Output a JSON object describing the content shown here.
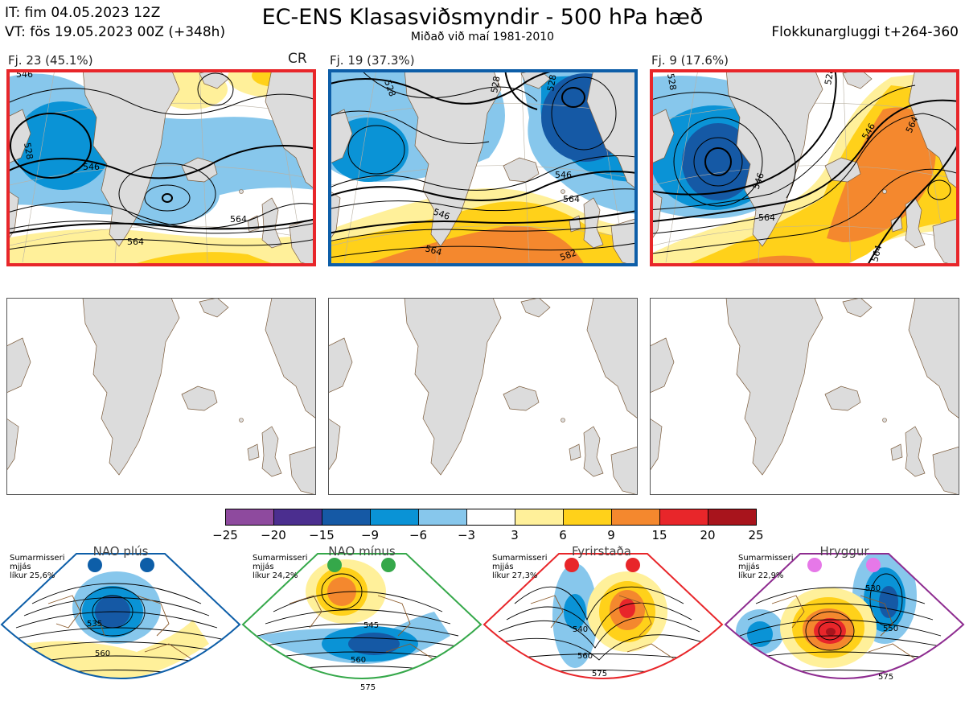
{
  "header": {
    "it_line": "IT: fim 04.05.2023 12Z",
    "vt_line": "VT: fös 19.05.2023 00Z  (+348h)",
    "title": "EC-ENS Klasasviðsmyndir - 500 hPa hæð",
    "subtitle": "Miðað við maí 1981-2010",
    "window": "Flokkunargluggi t+264-360"
  },
  "colors": {
    "red_border": "#e8262a",
    "blue_border": "#0d5ea8",
    "land": "#dcdcdc",
    "coast": "#7a5a3a"
  },
  "panels": [
    {
      "label": "Fj. 23 (45.1%)",
      "tag": "CR",
      "border": "red",
      "contours": [
        "546",
        "528",
        "546",
        "564",
        "564"
      ]
    },
    {
      "label": "Fj. 19 (37.3%)",
      "tag": "",
      "border": "blue",
      "contours": [
        "528",
        "528",
        "528",
        "546",
        "546",
        "564",
        "564",
        "582"
      ]
    },
    {
      "label": "Fj. 9 (17.6%)",
      "tag": "",
      "border": "red",
      "contours": [
        "528",
        "546",
        "564",
        "564",
        "528",
        "546",
        "564"
      ]
    }
  ],
  "colorbar": {
    "ticks": [
      "−25",
      "−20",
      "−15",
      "−9",
      "−6",
      "−3",
      "3",
      "6",
      "9",
      "15",
      "20",
      "25"
    ],
    "colors": [
      "#8e4a9e",
      "#4b2e8f",
      "#1559a5",
      "#0a93d6",
      "#87c7ec",
      "#ffffff",
      "#fff09a",
      "#ffd11a",
      "#f4882e",
      "#e8262a",
      "#a8141c"
    ]
  },
  "regimes": [
    {
      "title": "NAO plús",
      "season": "Sumarmisseri",
      "state": "",
      "likelihood": "líkur 25,6%",
      "contours": [
        "535",
        "560"
      ],
      "color": "#0d5ea8"
    },
    {
      "title": "NAO mínus",
      "season": "Sumarmisseri",
      "state": "mjjás",
      "likelihood": "líkur 24,2%",
      "contours": [
        "545",
        "560",
        "575"
      ],
      "color": "#35a84a"
    },
    {
      "title": "Fyrirstaða",
      "season": "Sumarmisseri",
      "state": "mjjás",
      "likelihood": "líkur 27,3%",
      "contours": [
        "540",
        "560",
        "575"
      ],
      "color": "#e8262a"
    },
    {
      "title": "Hryggur",
      "season": "Sumarmisseri",
      "state": "mjjás",
      "likelihood": "líkur 22,9%",
      "contours": [
        "530",
        "550",
        "575"
      ],
      "color": "#8e2c90"
    }
  ],
  "first_regime_state": "mjjás"
}
